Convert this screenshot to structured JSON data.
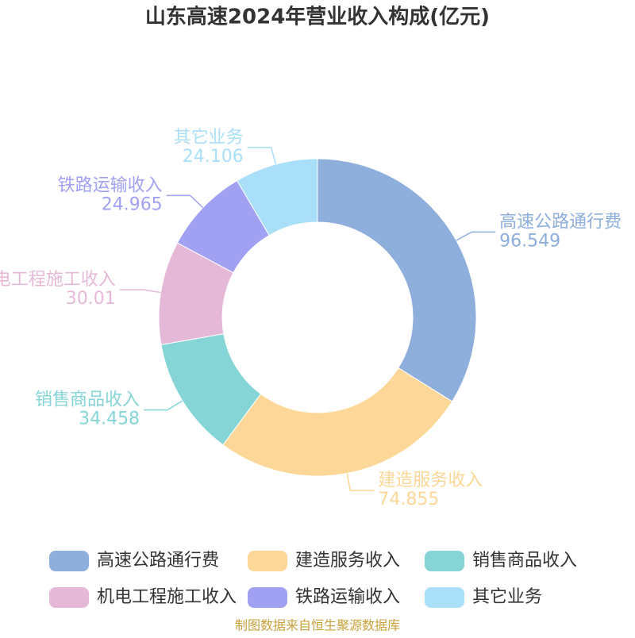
{
  "chart_data": {
    "type": "pie",
    "title": "山东高速2024年营业收入构成(亿元)",
    "categories": [
      "高速公路通行费",
      "建造服务收入",
      "销售商品收入",
      "机电工程施工收入",
      "铁路运输收入",
      "其它业务"
    ],
    "values": [
      96.549,
      74.855,
      34.458,
      30.01,
      24.965,
      24.106
    ],
    "colors": [
      "#8eaedb",
      "#fdd797",
      "#86d5d6",
      "#e6b8d8",
      "#a1a1f4",
      "#a9dff8"
    ],
    "source": "制图数据来自恒生聚源数据库"
  }
}
